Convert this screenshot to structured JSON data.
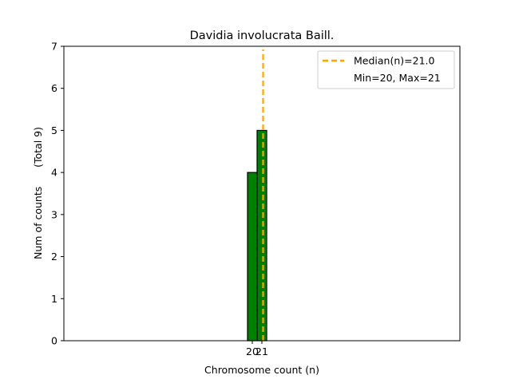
{
  "chart_data": {
    "type": "bar",
    "title": "Davidia involucrata Baill.",
    "xlabel": "Chromosome count (n)",
    "ylabel": "Num of counts      (Total 9)",
    "categories": [
      20,
      21
    ],
    "values": [
      4,
      5
    ],
    "ylim": [
      0,
      7
    ],
    "yticks": [
      0,
      1,
      2,
      3,
      4,
      5,
      6,
      7
    ],
    "xticks": [
      "20",
      "21"
    ],
    "median": 21.0,
    "legend": {
      "placement": "top-right",
      "entries": [
        "Median(n)=21.0",
        "Min=20, Max=21"
      ]
    },
    "colors": {
      "bar_fill": "#008000",
      "bar_edge": "#000000",
      "median_line": "#FFA500"
    }
  }
}
